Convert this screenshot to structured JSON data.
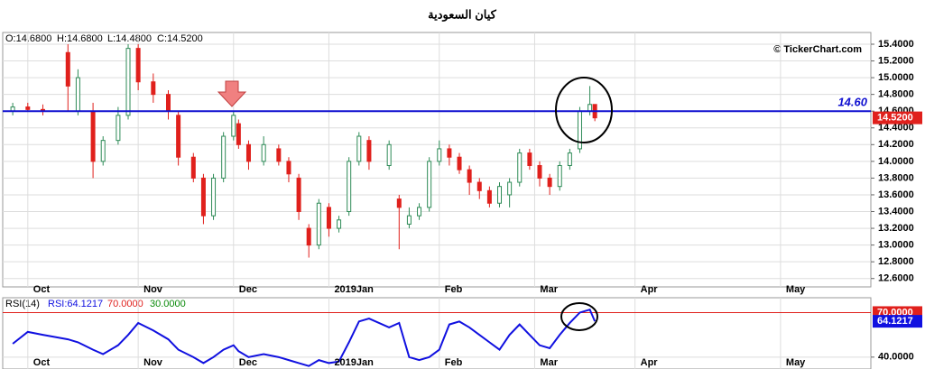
{
  "chart_data": [
    {
      "type": "candlestick",
      "title": "كيان السعودية",
      "ohlc_labels": [
        "O:14.6800",
        "H:14.6800",
        "L:14.4800",
        "C:14.5200"
      ],
      "watermark": "© TickerChart.com",
      "x": [
        2,
        5,
        8,
        13,
        15,
        18,
        20,
        23,
        25,
        27,
        30,
        33,
        35,
        38,
        40,
        42,
        44,
        46,
        47,
        49,
        52,
        55,
        57,
        59,
        61,
        63,
        65,
        67,
        69,
        71,
        73,
        77,
        79,
        81,
        83,
        85,
        87,
        89,
        91,
        93,
        95,
        97,
        99,
        101,
        103,
        105,
        107,
        109,
        111,
        113,
        115,
        117,
        118
      ],
      "open": [
        14.6,
        14.65,
        14.62,
        15.3,
        14.6,
        14.6,
        14.0,
        14.25,
        14.55,
        15.35,
        14.95,
        14.8,
        14.55,
        14.05,
        13.8,
        13.35,
        13.8,
        14.3,
        14.45,
        14.2,
        14.0,
        14.15,
        14.0,
        13.8,
        13.2,
        13.0,
        13.45,
        13.2,
        13.4,
        14.0,
        14.25,
        13.95,
        13.55,
        13.25,
        13.35,
        13.45,
        14.0,
        14.15,
        14.05,
        13.9,
        13.75,
        13.65,
        13.5,
        13.6,
        13.75,
        14.1,
        13.95,
        13.8,
        13.7,
        13.95,
        14.15,
        14.6,
        14.68
      ],
      "high": [
        14.7,
        14.7,
        14.68,
        15.4,
        15.1,
        14.7,
        14.3,
        14.65,
        15.4,
        15.4,
        15.05,
        14.85,
        14.6,
        14.1,
        13.85,
        13.85,
        14.35,
        14.6,
        14.5,
        14.25,
        14.3,
        14.2,
        14.05,
        13.85,
        13.25,
        13.55,
        13.5,
        13.35,
        14.05,
        14.35,
        14.3,
        14.25,
        13.6,
        13.45,
        13.5,
        14.05,
        14.25,
        14.2,
        14.1,
        13.95,
        13.8,
        13.7,
        13.75,
        13.8,
        14.15,
        14.15,
        14.0,
        13.85,
        14.0,
        14.15,
        14.65,
        14.9,
        14.68
      ],
      "low": [
        14.55,
        14.6,
        14.55,
        14.6,
        14.55,
        13.8,
        13.95,
        14.2,
        14.5,
        14.85,
        14.7,
        14.5,
        13.95,
        13.75,
        13.25,
        13.3,
        13.75,
        14.25,
        14.15,
        13.9,
        13.95,
        13.95,
        13.75,
        13.3,
        12.85,
        12.95,
        13.1,
        13.15,
        13.35,
        13.95,
        13.9,
        13.9,
        12.95,
        13.2,
        13.3,
        13.4,
        13.95,
        13.95,
        13.85,
        13.6,
        13.55,
        13.45,
        13.45,
        13.45,
        13.7,
        13.9,
        13.7,
        13.6,
        13.65,
        13.9,
        14.1,
        14.55,
        14.48
      ],
      "close": [
        14.65,
        14.62,
        14.6,
        14.9,
        15.0,
        14.0,
        14.25,
        14.55,
        15.35,
        14.95,
        14.8,
        14.6,
        14.05,
        13.8,
        13.35,
        13.8,
        14.3,
        14.55,
        14.2,
        14.0,
        14.2,
        14.0,
        13.85,
        13.4,
        13.0,
        13.5,
        13.2,
        13.3,
        14.0,
        14.3,
        14.0,
        14.2,
        13.45,
        13.35,
        13.45,
        14.0,
        14.15,
        14.05,
        13.9,
        13.75,
        13.65,
        13.5,
        13.7,
        13.75,
        14.1,
        13.95,
        13.8,
        13.7,
        13.95,
        14.1,
        14.6,
        14.68,
        14.52
      ],
      "up_color": "#2e8b57",
      "down_color": "#e0201c",
      "level": {
        "value": 14.6,
        "label": "14.60"
      },
      "last_price": {
        "value": 14.52,
        "label": "14.5200"
      },
      "xlim": [
        0,
        173
      ],
      "xticks": [
        {
          "value": 5,
          "label": "Oct"
        },
        {
          "value": 27,
          "label": "Nov"
        },
        {
          "value": 46,
          "label": "Dec"
        },
        {
          "value": 65,
          "label": "2019Jan"
        },
        {
          "value": 87,
          "label": "Feb"
        },
        {
          "value": 106,
          "label": "Mar"
        },
        {
          "value": 126,
          "label": "Apr"
        },
        {
          "value": 155,
          "label": "May"
        }
      ],
      "ylim": [
        12.5,
        15.54
      ],
      "yticks": [
        {
          "value": 12.6,
          "label": "12.6000"
        },
        {
          "value": 12.8,
          "label": "12.8000"
        },
        {
          "value": 13,
          "label": "13.0000"
        },
        {
          "value": 13.2,
          "label": "13.2000"
        },
        {
          "value": 13.4,
          "label": "13.4000"
        },
        {
          "value": 13.6,
          "label": "13.6000"
        },
        {
          "value": 13.8,
          "label": "13.8000"
        },
        {
          "value": 14,
          "label": "14.0000"
        },
        {
          "value": 14.2,
          "label": "14.2000"
        },
        {
          "value": 14.4,
          "label": "14.4000"
        },
        {
          "value": 14.6,
          "label": "14.6000"
        },
        {
          "value": 14.8,
          "label": "14.8000"
        },
        {
          "value": 15,
          "label": "15.0000"
        },
        {
          "value": 15.2,
          "label": "15.2000"
        },
        {
          "value": 15.4,
          "label": "15.4000"
        }
      ],
      "grid": true
    },
    {
      "type": "line",
      "title": "RSI(14)",
      "value_label": "RSI:64.1217",
      "x": [
        2,
        5,
        8,
        13,
        15,
        18,
        20,
        23,
        25,
        27,
        30,
        33,
        35,
        38,
        40,
        42,
        44,
        46,
        47,
        49,
        52,
        55,
        57,
        59,
        61,
        63,
        65,
        67,
        69,
        71,
        73,
        77,
        79,
        81,
        83,
        85,
        87,
        89,
        91,
        93,
        95,
        97,
        99,
        101,
        103,
        105,
        107,
        109,
        111,
        113,
        115,
        117,
        118
      ],
      "series": [
        {
          "name": "RSI",
          "color": "#1010e0",
          "values": [
            49,
            57,
            55,
            52,
            50,
            45,
            42,
            48,
            55,
            63,
            58,
            52,
            45,
            40,
            36,
            40,
            45,
            48,
            44,
            40,
            42,
            40,
            38,
            36,
            34,
            38,
            36,
            37,
            50,
            64,
            66,
            60,
            63,
            40,
            38,
            40,
            45,
            62,
            64,
            60,
            55,
            50,
            45,
            55,
            62,
            55,
            48,
            46,
            55,
            63,
            70,
            72,
            64.1217
          ]
        }
      ],
      "levels": [
        {
          "value": 70,
          "label": "70.0000",
          "color": "#e0201c"
        },
        {
          "value": 30,
          "label": "30.0000",
          "color": "#0a8a0a"
        }
      ],
      "last_value": {
        "value": 64.1217,
        "label": "64.1217"
      },
      "xlim": [
        0,
        173
      ],
      "xticks": [
        {
          "value": 5,
          "label": "Oct"
        },
        {
          "value": 27,
          "label": "Nov"
        },
        {
          "value": 46,
          "label": "Dec"
        },
        {
          "value": 65,
          "label": "2019Jan"
        },
        {
          "value": 87,
          "label": "Feb"
        },
        {
          "value": 106,
          "label": "Mar"
        },
        {
          "value": 126,
          "label": "Apr"
        },
        {
          "value": 155,
          "label": "May"
        }
      ],
      "ylim": [
        32,
        80
      ],
      "yticks": [
        {
          "value": 40,
          "label": "40.0000"
        }
      ],
      "grid": true
    }
  ]
}
